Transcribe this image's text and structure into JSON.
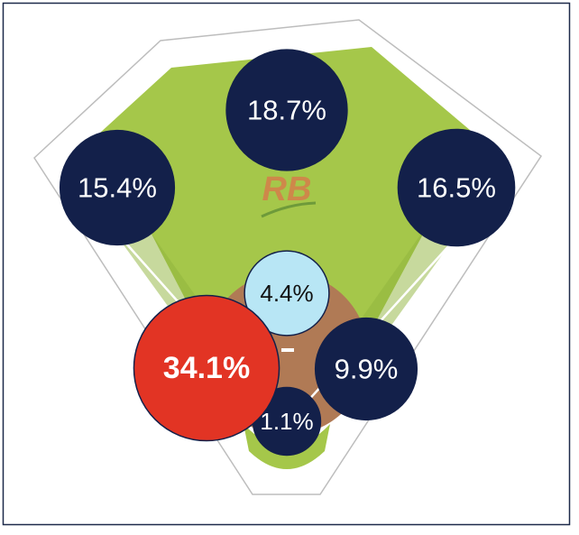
{
  "chart_data": {
    "type": "bubble",
    "logo": "RB",
    "values": [
      18.7,
      15.4,
      16.5,
      4.4,
      1.1,
      9.9,
      34.1
    ],
    "value_labels": [
      "18.7%",
      "15.4%",
      "16.5%",
      "4.4%",
      "1.1%",
      "9.9%",
      "34.1%"
    ],
    "colors": [
      "#13204a",
      "#13204a",
      "#13204a",
      "#b8e6f5",
      "#13204a",
      "#13204a",
      "#e23424"
    ]
  }
}
